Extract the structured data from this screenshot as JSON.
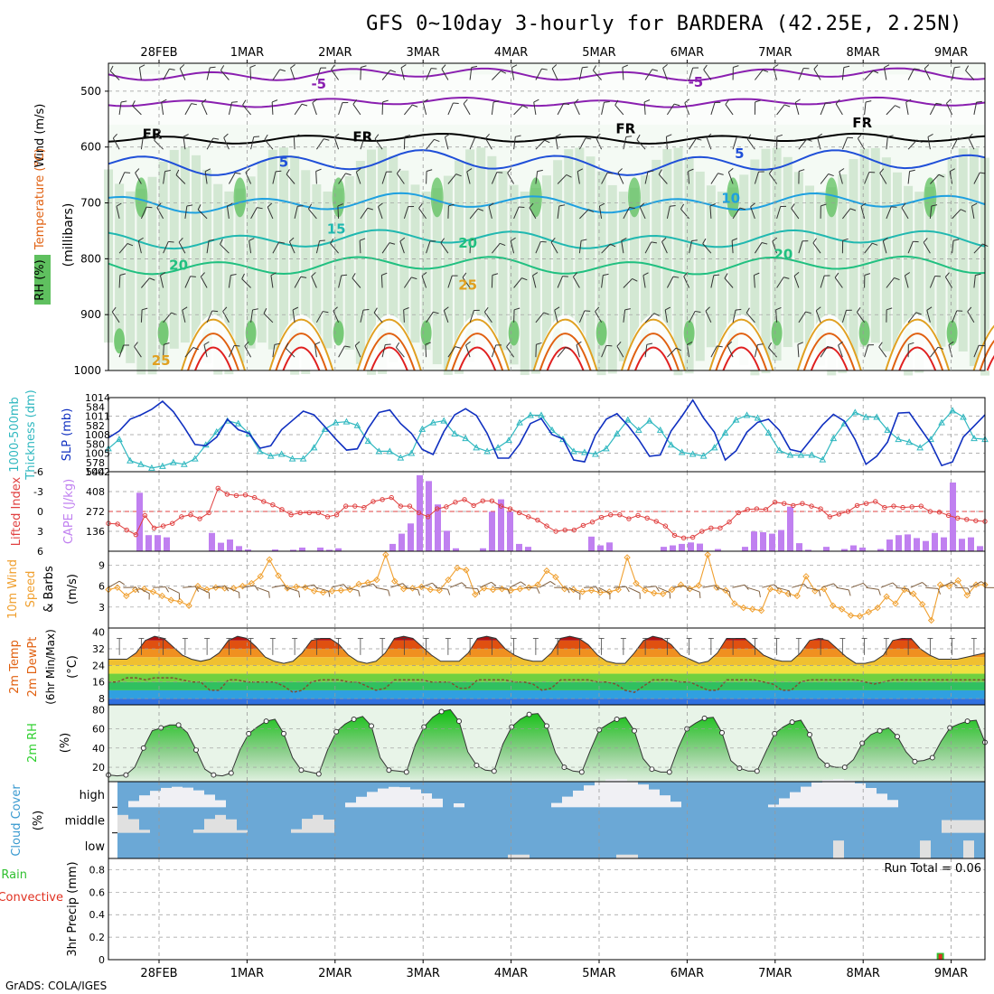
{
  "title": "GFS 0~10day 3-hourly for BARDERA (42.25E, 2.25N)",
  "footer": "GrADS: COLA/IGES",
  "dates": [
    "28FEB",
    "1MAR",
    "2MAR",
    "3MAR",
    "4MAR",
    "5MAR",
    "6MAR",
    "7MAR",
    "8MAR",
    "9MAR"
  ],
  "colors": {
    "rh_light": "#e6f3e6",
    "rh_mid": "#b8d8b8",
    "rh_dark": "#5fc05f",
    "temp_purple": "#8a1fb0",
    "temp_black": "#000000",
    "temp_blue": "#1f4fd8",
    "temp_lightblue": "#1ea0e0",
    "temp_teal": "#20b8b0",
    "temp_green": "#20c080",
    "temp_orange": "#e0a020",
    "temp_dkorange": "#e06010",
    "temp_red": "#e02020",
    "thickness": "#30b8c0",
    "slp": "#1030c0",
    "lifted": "#e04040",
    "cape": "#c080f0",
    "wind10m": "#f0a030",
    "barb10m": "#806040",
    "rh2m": "#30d030",
    "cloud_bg": "#6ba8d6",
    "cloud_bar": "#e0e0e0",
    "precip_rain": "#30c030",
    "precip_conv": "#e03020"
  },
  "panels": {
    "upper": {
      "y_label": "(millibars)",
      "side_labels": [
        "Wind (m/s)",
        "Temperature (°C)",
        "RH (%)"
      ],
      "y_ticks": [
        "500",
        "600",
        "700",
        "800",
        "900",
        "1000"
      ],
      "contour_labels": [
        {
          "text": "-5",
          "t": 0.24
        },
        {
          "text": "-5",
          "t": 0.67
        },
        {
          "text": "FR",
          "t": 0.05
        },
        {
          "text": "FR",
          "t": 0.29
        },
        {
          "text": "FR",
          "t": 0.59
        },
        {
          "text": "FR",
          "t": 0.86
        },
        {
          "text": "5",
          "t": 0.2
        },
        {
          "text": "5",
          "t": 0.72
        },
        {
          "text": "10",
          "t": 0.71
        },
        {
          "text": "15",
          "t": 0.26
        },
        {
          "text": "20",
          "t": 0.08
        },
        {
          "text": "20",
          "t": 0.41
        },
        {
          "text": "20",
          "t": 0.77
        },
        {
          "text": "25",
          "t": 0.41
        },
        {
          "text": "25",
          "t": 0.06
        }
      ]
    },
    "pressure": {
      "left_labels": [
        "1000-500mb",
        "Thickness (dm)"
      ],
      "right_label": "SLP (mb)",
      "left_ticks": [
        "584",
        "582",
        "580",
        "578"
      ],
      "right_ticks": [
        "1014",
        "1011",
        "1008",
        "1005",
        "1002"
      ]
    },
    "stability": {
      "left_label": "Lifted Index",
      "right_label": "CAPE (J/kg)",
      "left_ticks": [
        "-6",
        "-3",
        "0",
        "3",
        "6"
      ],
      "right_ticks": [
        "544",
        "408",
        "272",
        "136"
      ]
    },
    "wind10m": {
      "labels": [
        "10m Wind",
        "Speed",
        "& Barbs"
      ],
      "unit": "(m/s)",
      "ticks": [
        "9",
        "6",
        "3"
      ]
    },
    "temp2m": {
      "labels": [
        "2m Temp",
        "2m DewPt",
        "(6hr Min/Max)"
      ],
      "unit": "(°C)",
      "ticks": [
        "40",
        "32",
        "24",
        "16",
        "8"
      ]
    },
    "rh2m": {
      "label": "2m RH",
      "unit": "(%)",
      "ticks": [
        "80",
        "60",
        "40",
        "20"
      ]
    },
    "cloud": {
      "label": "Cloud Cover",
      "unit": "(%)",
      "levels": [
        "high",
        "middle",
        "low"
      ]
    },
    "precip": {
      "labels": [
        "Total / Rain",
        "Convective"
      ],
      "axis_label": "3hr Precip (mm)",
      "ticks": [
        "0.8",
        "0.6",
        "0.4",
        "0.2",
        "0"
      ],
      "extra_tick": "0.8",
      "run_total": "Run Total = 0.06"
    }
  },
  "chart_data": [
    {
      "type": "line",
      "title": "1000-500mb Thickness (dm) / SLP (mb)",
      "x": "3-hourly steps",
      "series": [
        {
          "name": "1000-500mb Thickness (dm)",
          "values": [
            579.5,
            580.5,
            578.2,
            577.8,
            577.4,
            577.6,
            578,
            577.8,
            578.4,
            579.9,
            581.3,
            582.5,
            582.2,
            581.1,
            579.2,
            578.7,
            578.9,
            578.4,
            578.4,
            579.6,
            581.6,
            582.3,
            582.4,
            582,
            580.3,
            579.2,
            579.2,
            578.5,
            579,
            581.6,
            582.3,
            582.5,
            581.1,
            580.6,
            579.6,
            579.2,
            579.6,
            580.4,
            582.3,
            583.1,
            583.1,
            581.5,
            580.5,
            579.2,
            579.1,
            578.9,
            579.5,
            581.1,
            582.6,
            581.5,
            582.5,
            581.5,
            579.9,
            579.1,
            578.9,
            578.7,
            579.6,
            581.2,
            582.6,
            583.1,
            582.8,
            581.2,
            579.3,
            578.8,
            578.8,
            578.8,
            578.3,
            580.6,
            582.2,
            583.4,
            582.9,
            582.9,
            581.5,
            580.5,
            580.2,
            579.6,
            580.5,
            582.3,
            583.6,
            582.9,
            580.6,
            580.5
          ]
        },
        {
          "name": "SLP (mb)",
          "values": [
            1007.5,
            1008.6,
            1010.5,
            1011.2,
            1012.1,
            1013.4,
            1011.7,
            1009.2,
            1006.4,
            1006.2,
            1007.6,
            1010.5,
            1008.8,
            1008.2,
            1005.8,
            1006.2,
            1008.8,
            1010.3,
            1011.8,
            1011.2,
            1009.3,
            1007.3,
            1005.5,
            1005.7,
            1009.0,
            1011.6,
            1012.0,
            1009.8,
            1008.2,
            1005.6,
            1004.8,
            1008.5,
            1011.2,
            1012.2,
            1011.1,
            1008.2,
            1004.2,
            1004.2,
            1006.5,
            1009.8,
            1010.6,
            1008.0,
            1007.3,
            1003.9,
            1003.6,
            1007.9,
            1010.5,
            1011.4,
            1009.5,
            1007.2,
            1004.5,
            1004.7,
            1008.6,
            1011.0,
            1013.6,
            1010.7,
            1008.4,
            1003.9,
            1005.4,
            1008.4,
            1010.0,
            1010.5,
            1008.7,
            1005.6,
            1005.2,
            1007.4,
            1009.6,
            1011.3,
            1010.2,
            1007.2,
            1003.2,
            1004.5,
            1006.8,
            1011.5,
            1011.6,
            1009.1,
            1006.6,
            1003.0,
            1003.6,
            1007.6,
            1009.4,
            1011.2
          ]
        }
      ],
      "ylim_left": [
        577,
        585
      ],
      "ylim_right": [
        1002,
        1014
      ]
    },
    {
      "type": "bar",
      "title": "Lifted Index / CAPE (J/kg)",
      "series": [
        {
          "name": "CAPE (J/kg)",
          "values": [
            0,
            0,
            0,
            400,
            110,
            110,
            95,
            0,
            0,
            0,
            0,
            125,
            58,
            80,
            35,
            12,
            0,
            0,
            12,
            0,
            10,
            25,
            0,
            25,
            10,
            20,
            0,
            0,
            0,
            0,
            0,
            50,
            120,
            190,
            520,
            480,
            320,
            140,
            20,
            0,
            0,
            20,
            270,
            355,
            270,
            50,
            30,
            0,
            0,
            0,
            0,
            0,
            0,
            100,
            40,
            60,
            0,
            0,
            0,
            0,
            0,
            30,
            40,
            50,
            60,
            52,
            0,
            15,
            0,
            0,
            30,
            135,
            130,
            120,
            145,
            305,
            55,
            10,
            0,
            30,
            0,
            15,
            40,
            25,
            0,
            15,
            80,
            110,
            115,
            90,
            70,
            125,
            95,
            470,
            85,
            95,
            35
          ]
        },
        {
          "name": "Lifted Index",
          "values": [
            1.8,
            1.9,
            2.8,
            3.5,
            0.6,
            2.5,
            2.2,
            1.8,
            0.8,
            0.5,
            1.1,
            0.2,
            -3.5,
            -2.6,
            -2.4,
            -2.5,
            -2.1,
            -1.5,
            -1.0,
            -0.3,
            0.5,
            0.2,
            0.2,
            0.2,
            0.8,
            0.5,
            -0.8,
            -0.8,
            -0.6,
            -1.5,
            -1.8,
            -2.1,
            -0.8,
            -0.8,
            0.2,
            0.8,
            -0.4,
            -0.7,
            -1.4,
            -1.8,
            -0.9,
            -1.6,
            -1.6,
            -0.8,
            -0.4,
            0.2,
            0.8,
            1.3,
            2.2,
            3.0,
            2.8,
            2.8,
            2.1,
            1.6,
            0.9,
            0.5,
            0.5,
            1.1,
            0.6,
            1.0,
            1.5,
            2.2,
            3.6,
            4.0,
            3.9,
            3.0,
            2.5,
            2.5,
            1.6,
            0.2,
            -0.3,
            -0.4,
            -0.3,
            -1.4,
            -1.2,
            -0.9,
            -1.2,
            -0.8,
            -0.4,
            0.8,
            0.4,
            0.0,
            -0.9,
            -1.2,
            -1.5,
            -0.6,
            -0.8,
            -0.6,
            -0.7,
            -0.8,
            0.0,
            0.1,
            0.6,
            1.0,
            1.2,
            1.4,
            1.5
          ]
        }
      ],
      "ylim_left": [
        6,
        -6
      ],
      "ylim_right": [
        0,
        544
      ]
    },
    {
      "type": "line",
      "title": "10m Wind Speed & Barbs (m/s)",
      "series": [
        {
          "name": "10m Wind Speed",
          "values": [
            5.5,
            5.8,
            4.6,
            5.5,
            5.6,
            5.2,
            4.6,
            4.0,
            3.8,
            3.2,
            6.0,
            5.5,
            5.8,
            5.7,
            5.7,
            6.0,
            6.4,
            7.4,
            9.8,
            7.5,
            5.7,
            5.9,
            5.8,
            5.3,
            5.1,
            5.3,
            5.4,
            5.5,
            6.3,
            6.5,
            6.9,
            10.5,
            6.7,
            5.6,
            5.7,
            5.9,
            5.5,
            5.4,
            6.9,
            8.6,
            8.3,
            4.8,
            5.7,
            5.5,
            5.6,
            5.4,
            5.6,
            5.8,
            6.2,
            8.2,
            7.3,
            5.6,
            5.5,
            5.2,
            5.4,
            5.1,
            5.2,
            5.5,
            10.1,
            6.4,
            5.4,
            5.0,
            4.9,
            5.5,
            6.2,
            5.6,
            6.1,
            10.5,
            5.8,
            5.4,
            3.5,
            2.9,
            2.7,
            2.5,
            5.6,
            5.3,
            4.9,
            4.6,
            7.4,
            5.3,
            5.6,
            3.2,
            2.7,
            1.8,
            1.7,
            2.3,
            2.9,
            4.5,
            3.5,
            5.5,
            4.9,
            3.4,
            1.1,
            6.2,
            6.0,
            6.8,
            4.7,
            6.2,
            6.2
          ]
        }
      ],
      "ylim": [
        0,
        11
      ]
    },
    {
      "type": "area",
      "title": "2m Temp / 2m DewPt (°C)",
      "series": [
        {
          "name": "2m Temp",
          "values": [
            27,
            27,
            27,
            30,
            36,
            38,
            37,
            33,
            29,
            27,
            26,
            27,
            30,
            36,
            38,
            37,
            33,
            28,
            26,
            25,
            26,
            30,
            36,
            37,
            37,
            34,
            29,
            26,
            25,
            26,
            30,
            37,
            38,
            37,
            33,
            29,
            26,
            26,
            26,
            30,
            37,
            38,
            37,
            32,
            29,
            27,
            26,
            26,
            30,
            37,
            38,
            37,
            34,
            29,
            26,
            25,
            25,
            30,
            36,
            38,
            37,
            34,
            29,
            27,
            25,
            26,
            30,
            37,
            37,
            37,
            33,
            29,
            27,
            26,
            26,
            30,
            36,
            37,
            36,
            32,
            28,
            25,
            25,
            26,
            29,
            36,
            37,
            37,
            32,
            29,
            27,
            27,
            27,
            28,
            29,
            30
          ]
        },
        {
          "name": "2m DewPt",
          "values": [
            16,
            16,
            18,
            18,
            17,
            18,
            18,
            18,
            17,
            16,
            16,
            12,
            12,
            17,
            17,
            16,
            16,
            16,
            16,
            14,
            11,
            12,
            16,
            17,
            17,
            17,
            16,
            16,
            14,
            12,
            13,
            17,
            17,
            17,
            17,
            16,
            16,
            16,
            13,
            13,
            17,
            17,
            17,
            17,
            16,
            16,
            15,
            12,
            13,
            17,
            17,
            17,
            17,
            16,
            16,
            15,
            12,
            11,
            14,
            17,
            17,
            17,
            16,
            16,
            14,
            12,
            12,
            17,
            17,
            17,
            17,
            16,
            15,
            12,
            12,
            16,
            17,
            17,
            17,
            17,
            17,
            17,
            16,
            15,
            16,
            17,
            17,
            17,
            17,
            17,
            17,
            17,
            17,
            17,
            17,
            17
          ]
        }
      ],
      "ylim": [
        5,
        42
      ]
    },
    {
      "type": "area",
      "title": "2m RH (%)",
      "series": [
        {
          "name": "2m RH",
          "values": [
            12,
            11,
            12,
            20,
            40,
            58,
            61,
            64,
            64,
            56,
            38,
            18,
            12,
            11,
            14,
            38,
            55,
            62,
            68,
            70,
            55,
            30,
            17,
            15,
            13,
            38,
            57,
            65,
            70,
            73,
            63,
            30,
            17,
            16,
            15,
            43,
            62,
            72,
            78,
            80,
            68,
            36,
            22,
            17,
            16,
            44,
            62,
            70,
            75,
            76,
            63,
            35,
            20,
            16,
            15,
            38,
            59,
            65,
            70,
            72,
            58,
            29,
            18,
            15,
            15,
            40,
            60,
            66,
            71,
            72,
            56,
            27,
            19,
            16,
            16,
            36,
            55,
            62,
            67,
            69,
            54,
            30,
            22,
            20,
            20,
            28,
            45,
            54,
            58,
            61,
            52,
            36,
            26,
            27,
            30,
            47,
            61,
            65,
            68,
            69,
            46
          ]
        }
      ],
      "ylim": [
        5,
        85
      ]
    },
    {
      "type": "bar",
      "title": "3hr Precip (mm)",
      "series": [
        {
          "name": "Total / Rain",
          "values": [
            0.01
          ]
        },
        {
          "name": "Convective",
          "values": [
            0.05
          ]
        }
      ],
      "ylim": [
        0,
        0.9
      ]
    }
  ]
}
